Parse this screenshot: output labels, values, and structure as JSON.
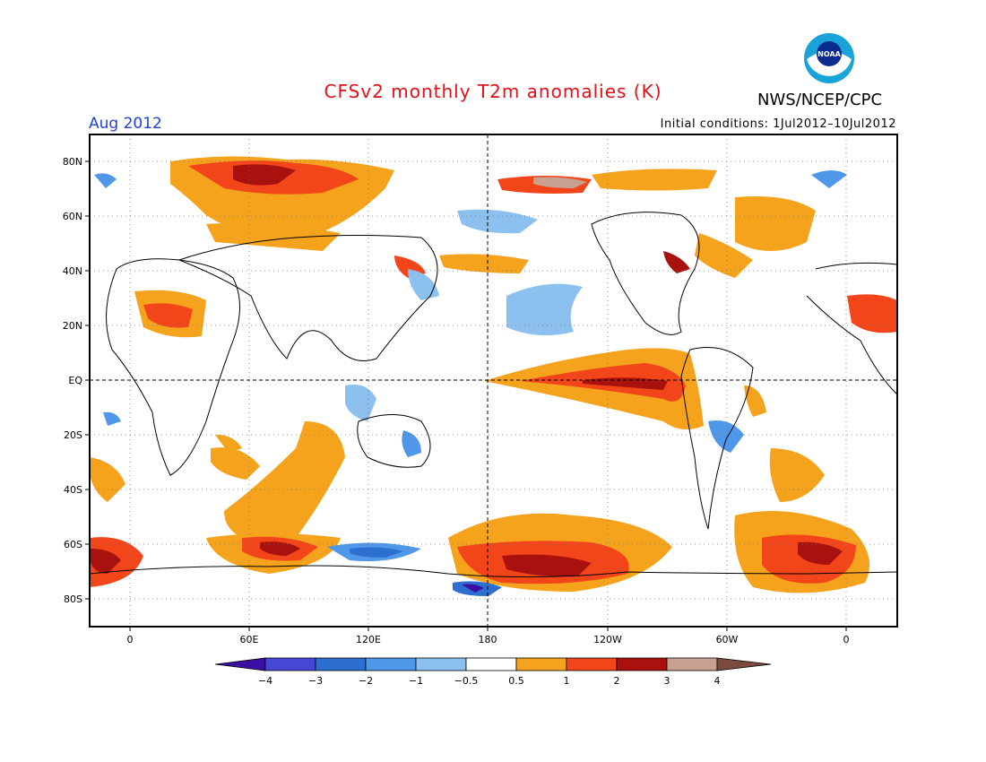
{
  "header": {
    "title": "CFSv2 monthly T2m anomalies (K)",
    "agency": "NWS/NCEP/CPC",
    "logo_text": "NOAA",
    "period": "Aug 2012",
    "initial_conditions": "Initial conditions: 1Jul2012–10Jul2012"
  },
  "map": {
    "lat_labels": [
      "80N",
      "60N",
      "40N",
      "20N",
      "EQ",
      "20S",
      "40S",
      "60S",
      "80S"
    ],
    "lon_labels": [
      "0",
      "60E",
      "120E",
      "180",
      "120W",
      "60W",
      "0"
    ]
  },
  "legend": {
    "labels": [
      "−4",
      "−3",
      "−2",
      "−1",
      "−0.5",
      "0.5",
      "1",
      "2",
      "3",
      "4"
    ],
    "colors": [
      "#3a0fa3",
      "#4747d6",
      "#2c6fd1",
      "#4f97e8",
      "#8cc0ef",
      "#ffffff",
      "#f5a21c",
      "#f2461a",
      "#a9110e",
      "#c8a190",
      "#7a4a3e"
    ]
  }
}
